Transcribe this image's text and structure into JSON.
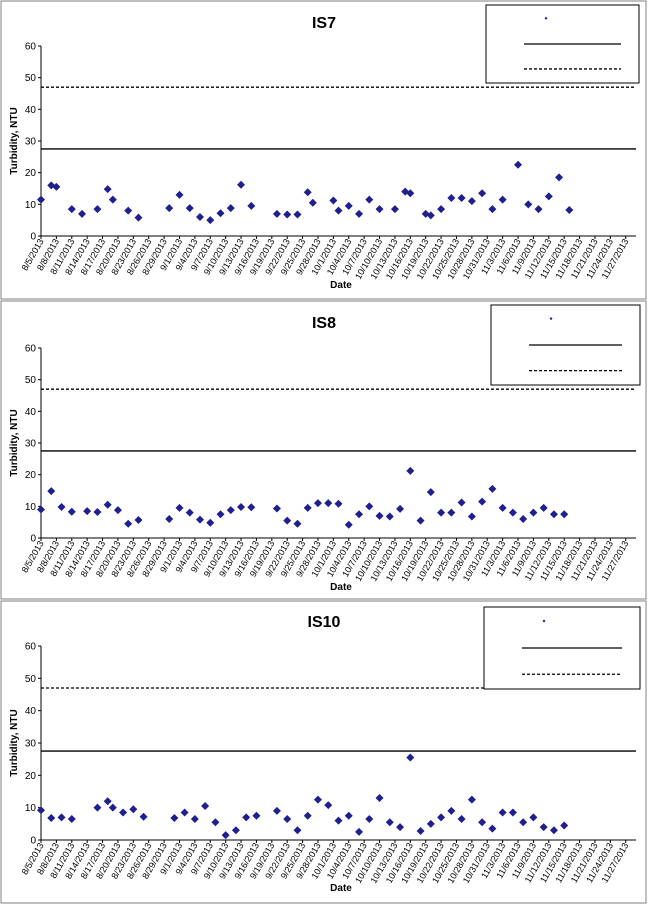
{
  "colors": {
    "marker": "#1f1f8f",
    "line": "#000000",
    "frame": "#808080"
  },
  "chart_data": [
    {
      "type": "scatter",
      "title": "IS7",
      "xlabel": "Date",
      "ylabel": "Turbidity, NTU",
      "ylim": [
        0,
        60
      ],
      "yticks": [
        0,
        10,
        20,
        30,
        40,
        50,
        60
      ],
      "x_tick_labels": [
        "8/5/2013",
        "8/8/2013",
        "8/11/2013",
        "8/14/2013",
        "8/17/2013",
        "8/20/2013",
        "8/23/2013",
        "8/26/2013",
        "8/29/2013",
        "9/1/2013",
        "9/4/2013",
        "9/7/2013",
        "9/10/2013",
        "9/13/2013",
        "9/16/2013",
        "9/19/2013",
        "9/22/2013",
        "9/25/2013",
        "9/28/2013",
        "10/1/2013",
        "10/4/2013",
        "10/7/2013",
        "10/10/2013",
        "10/13/2013",
        "10/16/2013",
        "10/19/2013",
        "10/22/2013",
        "10/25/2013",
        "10/28/2013",
        "10/31/2013",
        "11/3/2013",
        "11/6/2013",
        "11/9/2013",
        "11/12/2013",
        "11/15/2013",
        "11/18/2013",
        "11/21/2013",
        "11/24/2013",
        "11/27/2013"
      ],
      "x_range": [
        "8/5/2013",
        "11/29/2013"
      ],
      "reference_lines": [
        {
          "style": "solid",
          "value": 27.5
        },
        {
          "style": "dashed",
          "value": 47
        }
      ],
      "legend": {
        "position": "top-right",
        "entries": [
          "",
          "",
          ""
        ]
      },
      "series": [
        {
          "points": [
            [
              "8/5/2013",
              11.5
            ],
            [
              "8/7/2013",
              16
            ],
            [
              "8/8/2013",
              15.5
            ],
            [
              "8/11/2013",
              8.5
            ],
            [
              "8/13/2013",
              7
            ],
            [
              "8/16/2013",
              8.5
            ],
            [
              "8/18/2013",
              14.8
            ],
            [
              "8/19/2013",
              11.5
            ],
            [
              "8/22/2013",
              8
            ],
            [
              "8/24/2013",
              5.8
            ],
            [
              "8/30/2013",
              8.8
            ],
            [
              "9/1/2013",
              13
            ],
            [
              "9/3/2013",
              8.8
            ],
            [
              "9/5/2013",
              6
            ],
            [
              "9/7/2013",
              5
            ],
            [
              "9/9/2013",
              7.2
            ],
            [
              "9/11/2013",
              8.8
            ],
            [
              "9/13/2013",
              16.2
            ],
            [
              "9/15/2013",
              9.5
            ],
            [
              "9/20/2013",
              7
            ],
            [
              "9/22/2013",
              6.8
            ],
            [
              "9/24/2013",
              6.8
            ],
            [
              "9/26/2013",
              13.8
            ],
            [
              "9/27/2013",
              10.5
            ],
            [
              "10/1/2013",
              11.2
            ],
            [
              "10/2/2013",
              8
            ],
            [
              "10/4/2013",
              9.5
            ],
            [
              "10/6/2013",
              7
            ],
            [
              "10/8/2013",
              11.5
            ],
            [
              "10/10/2013",
              8.5
            ],
            [
              "10/13/2013",
              8.5
            ],
            [
              "10/15/2013",
              14
            ],
            [
              "10/16/2013",
              13.5
            ],
            [
              "10/19/2013",
              7
            ],
            [
              "10/20/2013",
              6.5
            ],
            [
              "10/22/2013",
              8.5
            ],
            [
              "10/24/2013",
              12
            ],
            [
              "10/26/2013",
              12
            ],
            [
              "10/28/2013",
              11
            ],
            [
              "10/30/2013",
              13.5
            ],
            [
              "11/1/2013",
              8.5
            ],
            [
              "11/3/2013",
              11.5
            ],
            [
              "11/6/2013",
              22.5
            ],
            [
              "11/8/2013",
              10
            ],
            [
              "11/10/2013",
              8.5
            ],
            [
              "11/12/2013",
              12.5
            ],
            [
              "11/14/2013",
              18.5
            ],
            [
              "11/16/2013",
              8.2
            ]
          ]
        }
      ]
    },
    {
      "type": "scatter",
      "title": "IS8",
      "xlabel": "Date",
      "ylabel": "Turbidity, NTU",
      "ylim": [
        0,
        60
      ],
      "yticks": [
        0,
        10,
        20,
        30,
        40,
        50,
        60
      ],
      "x_tick_labels": [
        "8/5/2013",
        "8/8/2013",
        "8/11/2013",
        "8/14/2013",
        "8/17/2013",
        "8/20/2013",
        "8/23/2013",
        "8/26/2013",
        "8/29/2013",
        "9/1/2013",
        "9/4/2013",
        "9/7/2013",
        "9/10/2013",
        "9/13/2013",
        "9/16/2013",
        "9/19/2013",
        "9/22/2013",
        "9/25/2013",
        "9/28/2013",
        "10/1/2013",
        "10/4/2013",
        "10/7/2013",
        "10/10/2013",
        "10/13/2013",
        "10/16/2013",
        "10/19/2013",
        "10/22/2013",
        "10/25/2013",
        "10/28/2013",
        "10/31/2013",
        "11/3/2013",
        "11/6/2013",
        "11/9/2013",
        "11/12/2013",
        "11/15/2013",
        "11/18/2013",
        "11/21/2013",
        "11/24/2013",
        "11/27/2013"
      ],
      "x_range": [
        "8/5/2013",
        "11/29/2013"
      ],
      "reference_lines": [
        {
          "style": "solid",
          "value": 27.5
        },
        {
          "style": "dashed",
          "value": 47
        }
      ],
      "legend": {
        "position": "top-right",
        "entries": [
          "",
          "",
          ""
        ]
      },
      "series": [
        {
          "points": [
            [
              "8/5/2013",
              9
            ],
            [
              "8/7/2013",
              14.8
            ],
            [
              "8/9/2013",
              9.8
            ],
            [
              "8/11/2013",
              8.3
            ],
            [
              "8/14/2013",
              8.5
            ],
            [
              "8/16/2013",
              8.2
            ],
            [
              "8/18/2013",
              10.5
            ],
            [
              "8/20/2013",
              8.8
            ],
            [
              "8/22/2013",
              4.5
            ],
            [
              "8/24/2013",
              5.7
            ],
            [
              "8/30/2013",
              6
            ],
            [
              "9/1/2013",
              9.5
            ],
            [
              "9/3/2013",
              8
            ],
            [
              "9/5/2013",
              5.8
            ],
            [
              "9/7/2013",
              4.8
            ],
            [
              "9/9/2013",
              7.5
            ],
            [
              "9/11/2013",
              8.8
            ],
            [
              "9/13/2013",
              9.8
            ],
            [
              "9/15/2013",
              9.7
            ],
            [
              "9/20/2013",
              9.3
            ],
            [
              "9/22/2013",
              5.5
            ],
            [
              "9/24/2013",
              4.5
            ],
            [
              "9/26/2013",
              9.5
            ],
            [
              "9/28/2013",
              11
            ],
            [
              "9/30/2013",
              11
            ],
            [
              "10/2/2013",
              10.8
            ],
            [
              "10/4/2013",
              4.2
            ],
            [
              "10/6/2013",
              7.5
            ],
            [
              "10/8/2013",
              10
            ],
            [
              "10/10/2013",
              7
            ],
            [
              "10/12/2013",
              6.8
            ],
            [
              "10/14/2013",
              9.2
            ],
            [
              "10/16/2013",
              21.2
            ],
            [
              "10/18/2013",
              5.5
            ],
            [
              "10/20/2013",
              14.5
            ],
            [
              "10/22/2013",
              8
            ],
            [
              "10/24/2013",
              8
            ],
            [
              "10/26/2013",
              11.2
            ],
            [
              "10/28/2013",
              6.8
            ],
            [
              "10/30/2013",
              11.5
            ],
            [
              "11/1/2013",
              15.5
            ],
            [
              "11/3/2013",
              9.5
            ],
            [
              "11/5/2013",
              8
            ],
            [
              "11/7/2013",
              6
            ],
            [
              "11/9/2013",
              8
            ],
            [
              "11/11/2013",
              9.5
            ],
            [
              "11/13/2013",
              7.5
            ],
            [
              "11/15/2013",
              7.5
            ]
          ]
        }
      ]
    },
    {
      "type": "scatter",
      "title": "IS10",
      "xlabel": "Date",
      "ylabel": "Turbidity, NTU",
      "ylim": [
        0,
        60
      ],
      "yticks": [
        0,
        10,
        20,
        30,
        40,
        50,
        60
      ],
      "x_tick_labels": [
        "8/5/2013",
        "8/8/2013",
        "8/11/2013",
        "8/14/2013",
        "8/17/2013",
        "8/20/2013",
        "8/23/2013",
        "8/26/2013",
        "8/29/2013",
        "9/1/2013",
        "9/4/2013",
        "9/7/2013",
        "9/10/2013",
        "9/13/2013",
        "9/16/2013",
        "9/19/2013",
        "9/22/2013",
        "9/25/2013",
        "9/28/2013",
        "10/1/2013",
        "10/4/2013",
        "10/7/2013",
        "10/10/2013",
        "10/13/2013",
        "10/16/2013",
        "10/19/2013",
        "10/22/2013",
        "10/25/2013",
        "10/28/2013",
        "10/31/2013",
        "11/3/2013",
        "11/6/2013",
        "11/9/2013",
        "11/12/2013",
        "11/15/2013",
        "11/18/2013",
        "11/21/2013",
        "11/24/2013",
        "11/27/2013"
      ],
      "x_range": [
        "8/5/2013",
        "11/29/2013"
      ],
      "reference_lines": [
        {
          "style": "solid",
          "value": 27.5
        },
        {
          "style": "dashed",
          "value": 47
        }
      ],
      "legend": {
        "position": "top-right",
        "entries": [
          "",
          "",
          ""
        ]
      },
      "series": [
        {
          "points": [
            [
              "8/5/2013",
              9.2
            ],
            [
              "8/7/2013",
              6.8
            ],
            [
              "8/9/2013",
              7
            ],
            [
              "8/11/2013",
              6.5
            ],
            [
              "8/16/2013",
              10
            ],
            [
              "8/18/2013",
              12
            ],
            [
              "8/19/2013",
              10
            ],
            [
              "8/21/2013",
              8.5
            ],
            [
              "8/23/2013",
              9.5
            ],
            [
              "8/25/2013",
              7.2
            ],
            [
              "8/31/2013",
              6.8
            ],
            [
              "9/2/2013",
              8.5
            ],
            [
              "9/4/2013",
              6.5
            ],
            [
              "9/6/2013",
              10.5
            ],
            [
              "9/8/2013",
              5.5
            ],
            [
              "9/10/2013",
              1.5
            ],
            [
              "9/12/2013",
              3
            ],
            [
              "9/14/2013",
              7
            ],
            [
              "9/16/2013",
              7.5
            ],
            [
              "9/20/2013",
              9
            ],
            [
              "9/22/2013",
              6.5
            ],
            [
              "9/24/2013",
              3
            ],
            [
              "9/26/2013",
              7.5
            ],
            [
              "9/28/2013",
              12.5
            ],
            [
              "9/30/2013",
              10.8
            ],
            [
              "10/2/2013",
              6
            ],
            [
              "10/4/2013",
              7.5
            ],
            [
              "10/6/2013",
              2.5
            ],
            [
              "10/8/2013",
              6.5
            ],
            [
              "10/10/2013",
              13
            ],
            [
              "10/12/2013",
              5.5
            ],
            [
              "10/14/2013",
              4
            ],
            [
              "10/16/2013",
              25.5
            ],
            [
              "10/18/2013",
              2.8
            ],
            [
              "10/20/2013",
              5
            ],
            [
              "10/22/2013",
              7
            ],
            [
              "10/24/2013",
              9
            ],
            [
              "10/26/2013",
              6.5
            ],
            [
              "10/28/2013",
              12.5
            ],
            [
              "10/30/2013",
              5.5
            ],
            [
              "11/1/2013",
              3.5
            ],
            [
              "11/3/2013",
              8.5
            ],
            [
              "11/5/2013",
              8.5
            ],
            [
              "11/7/2013",
              5.5
            ],
            [
              "11/9/2013",
              7
            ],
            [
              "11/11/2013",
              4
            ],
            [
              "11/13/2013",
              3
            ],
            [
              "11/15/2013",
              4.5
            ]
          ]
        }
      ]
    }
  ]
}
